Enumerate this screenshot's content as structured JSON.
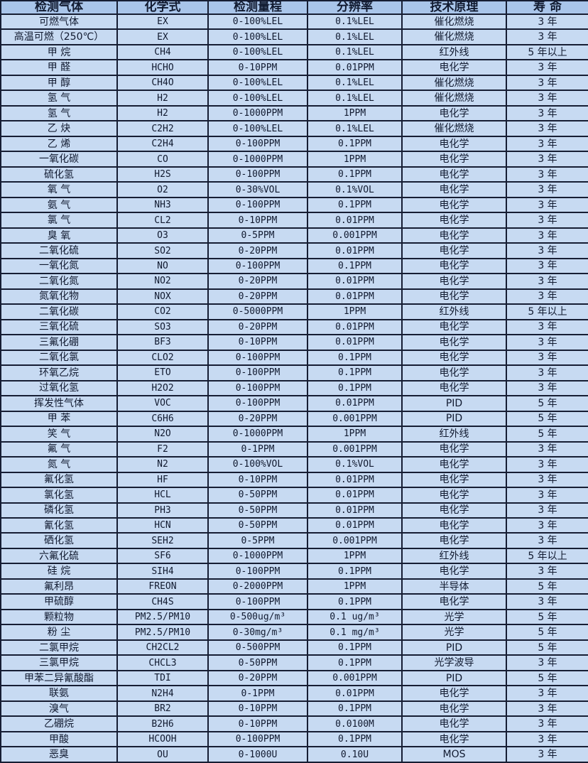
{
  "table": {
    "colors": {
      "header_bg": "#a9c5ea",
      "row_bg": "#c7daf2",
      "border": "#161d33",
      "text": "#111a30"
    },
    "headers": [
      "检测气体",
      "化学式",
      "检测量程",
      "分辨率",
      "技术原理",
      "寿 命"
    ],
    "rows": [
      [
        "可燃气体",
        "EX",
        "0-100%LEL",
        "0.1%LEL",
        "催化燃烧",
        "3 年"
      ],
      [
        "高温可燃（250℃）",
        "EX",
        "0-100%LEL",
        "0.1%LEL",
        "催化燃烧",
        "3 年"
      ],
      [
        "甲 烷",
        "CH4",
        "0-100%LEL",
        "0.1%LEL",
        "红外线",
        "5 年以上"
      ],
      [
        "甲 醛",
        "HCHO",
        "0-10PPM",
        "0.01PPM",
        "电化学",
        "3 年"
      ],
      [
        "甲 醇",
        "CH4O",
        "0-100%LEL",
        "0.1%LEL",
        "催化燃烧",
        "3 年"
      ],
      [
        "氢 气",
        "H2",
        "0-100%LEL",
        "0.1%LEL",
        "催化燃烧",
        "3 年"
      ],
      [
        "氢 气",
        "H2",
        "0-1000PPM",
        "1PPM",
        "电化学",
        "3 年"
      ],
      [
        "乙 炔",
        "C2H2",
        "0-100%LEL",
        "0.1%LEL",
        "催化燃烧",
        "3 年"
      ],
      [
        "乙 烯",
        "C2H4",
        "0-100PPM",
        "0.1PPM",
        "电化学",
        "3 年"
      ],
      [
        "一氧化碳",
        "CO",
        "0-1000PPM",
        "1PPM",
        "电化学",
        "3 年"
      ],
      [
        "硫化氢",
        "H2S",
        "0-100PPM",
        "0.1PPM",
        "电化学",
        "3 年"
      ],
      [
        "氧 气",
        "O2",
        "0-30%VOL",
        "0.1%VOL",
        "电化学",
        "3 年"
      ],
      [
        "氨 气",
        "NH3",
        "0-100PPM",
        "0.1PPM",
        "电化学",
        "3 年"
      ],
      [
        "氯 气",
        "CL2",
        "0-10PPM",
        "0.01PPM",
        "电化学",
        "3 年"
      ],
      [
        "臭 氧",
        "O3",
        "0-5PPM",
        "0.001PPM",
        "电化学",
        "3 年"
      ],
      [
        "二氧化硫",
        "SO2",
        "0-20PPM",
        "0.01PPM",
        "电化学",
        "3 年"
      ],
      [
        "一氧化氮",
        "NO",
        "0-100PPM",
        "0.1PPM",
        "电化学",
        "3 年"
      ],
      [
        "二氧化氮",
        "NO2",
        "0-20PPM",
        "0.01PPM",
        "电化学",
        "3 年"
      ],
      [
        "氮氧化物",
        "NOX",
        "0-20PPM",
        "0.01PPM",
        "电化学",
        "3 年"
      ],
      [
        "二氧化碳",
        "CO2",
        "0-5000PPM",
        "1PPM",
        "红外线",
        "5 年以上"
      ],
      [
        "三氧化硫",
        "SO3",
        "0-20PPM",
        "0.01PPM",
        "电化学",
        "3 年"
      ],
      [
        "三氟化硼",
        "BF3",
        "0-10PPM",
        "0.01PPM",
        "电化学",
        "3 年"
      ],
      [
        "二氧化氯",
        "CLO2",
        "0-100PPM",
        "0.1PPM",
        "电化学",
        "3 年"
      ],
      [
        "环氧乙烷",
        "ETO",
        "0-100PPM",
        "0.1PPM",
        "电化学",
        "3 年"
      ],
      [
        "过氧化氢",
        "H2O2",
        "0-100PPM",
        "0.1PPM",
        "电化学",
        "3 年"
      ],
      [
        "挥发性气体",
        "VOC",
        "0-100PPM",
        "0.01PPM",
        "PID",
        "5 年"
      ],
      [
        "甲 苯",
        "C6H6",
        "0-20PPM",
        "0.001PPM",
        "PID",
        "5 年"
      ],
      [
        "笑 气",
        "N2O",
        "0-1000PPM",
        "1PPM",
        "红外线",
        "5 年"
      ],
      [
        "氟 气",
        "F2",
        "0-1PPM",
        "0.001PPM",
        "电化学",
        "3 年"
      ],
      [
        "氮 气",
        "N2",
        "0-100%VOL",
        "0.1%VOL",
        "电化学",
        "3 年"
      ],
      [
        "氟化氢",
        "HF",
        "0-10PPM",
        "0.01PPM",
        "电化学",
        "3 年"
      ],
      [
        "氯化氢",
        "HCL",
        "0-50PPM",
        "0.01PPM",
        "电化学",
        "3 年"
      ],
      [
        "磷化氢",
        "PH3",
        "0-50PPM",
        "0.01PPM",
        "电化学",
        "3 年"
      ],
      [
        "氰化氢",
        "HCN",
        "0-50PPM",
        "0.01PPM",
        "电化学",
        "3 年"
      ],
      [
        "硒化氢",
        "SEH2",
        "0-5PPM",
        "0.001PPM",
        "电化学",
        "3 年"
      ],
      [
        "六氟化硫",
        "SF6",
        "0-1000PPM",
        "1PPM",
        "红外线",
        "5 年以上"
      ],
      [
        "硅 烷",
        "SIH4",
        "0-100PPM",
        "0.1PPM",
        "电化学",
        "3 年"
      ],
      [
        "氟利昂",
        "FREON",
        "0-2000PPM",
        "1PPM",
        "半导体",
        "5 年"
      ],
      [
        "甲硫醇",
        "CH4S",
        "0-100PPM",
        "0.1PPM",
        "电化学",
        "3 年"
      ],
      [
        "颗粒物",
        "PM2.5/PM10",
        "0-500ug/m³",
        "0.1 ug/m³",
        "光学",
        "5 年"
      ],
      [
        "粉 尘",
        "PM2.5/PM10",
        "0-30mg/m³",
        "0.1 mg/m³",
        "光学",
        "5 年"
      ],
      [
        "二氯甲烷",
        "CH2CL2",
        "0-500PPM",
        "0.1PPM",
        "PID",
        "5 年"
      ],
      [
        "三氯甲烷",
        "CHCL3",
        "0-50PPM",
        "0.1PPM",
        "光学波导",
        "3 年"
      ],
      [
        "甲苯二异氰酸酯",
        "TDI",
        "0-20PPM",
        "0.001PPM",
        "PID",
        "5 年"
      ],
      [
        "联氨",
        "N2H4",
        "0-1PPM",
        "0.01PPM",
        "电化学",
        "3 年"
      ],
      [
        "溴气",
        "BR2",
        "0-10PPM",
        "0.1PPM",
        "电化学",
        "3 年"
      ],
      [
        "乙硼烷",
        "B2H6",
        "0-10PPM",
        "0.0100M",
        "电化学",
        "3 年"
      ],
      [
        "甲酸",
        "HCOOH",
        "0-100PPM",
        "0.1PPM",
        "电化学",
        "3 年"
      ],
      [
        "恶臭",
        "OU",
        "0-1000U",
        "0.10U",
        "MOS",
        "3 年"
      ]
    ]
  }
}
